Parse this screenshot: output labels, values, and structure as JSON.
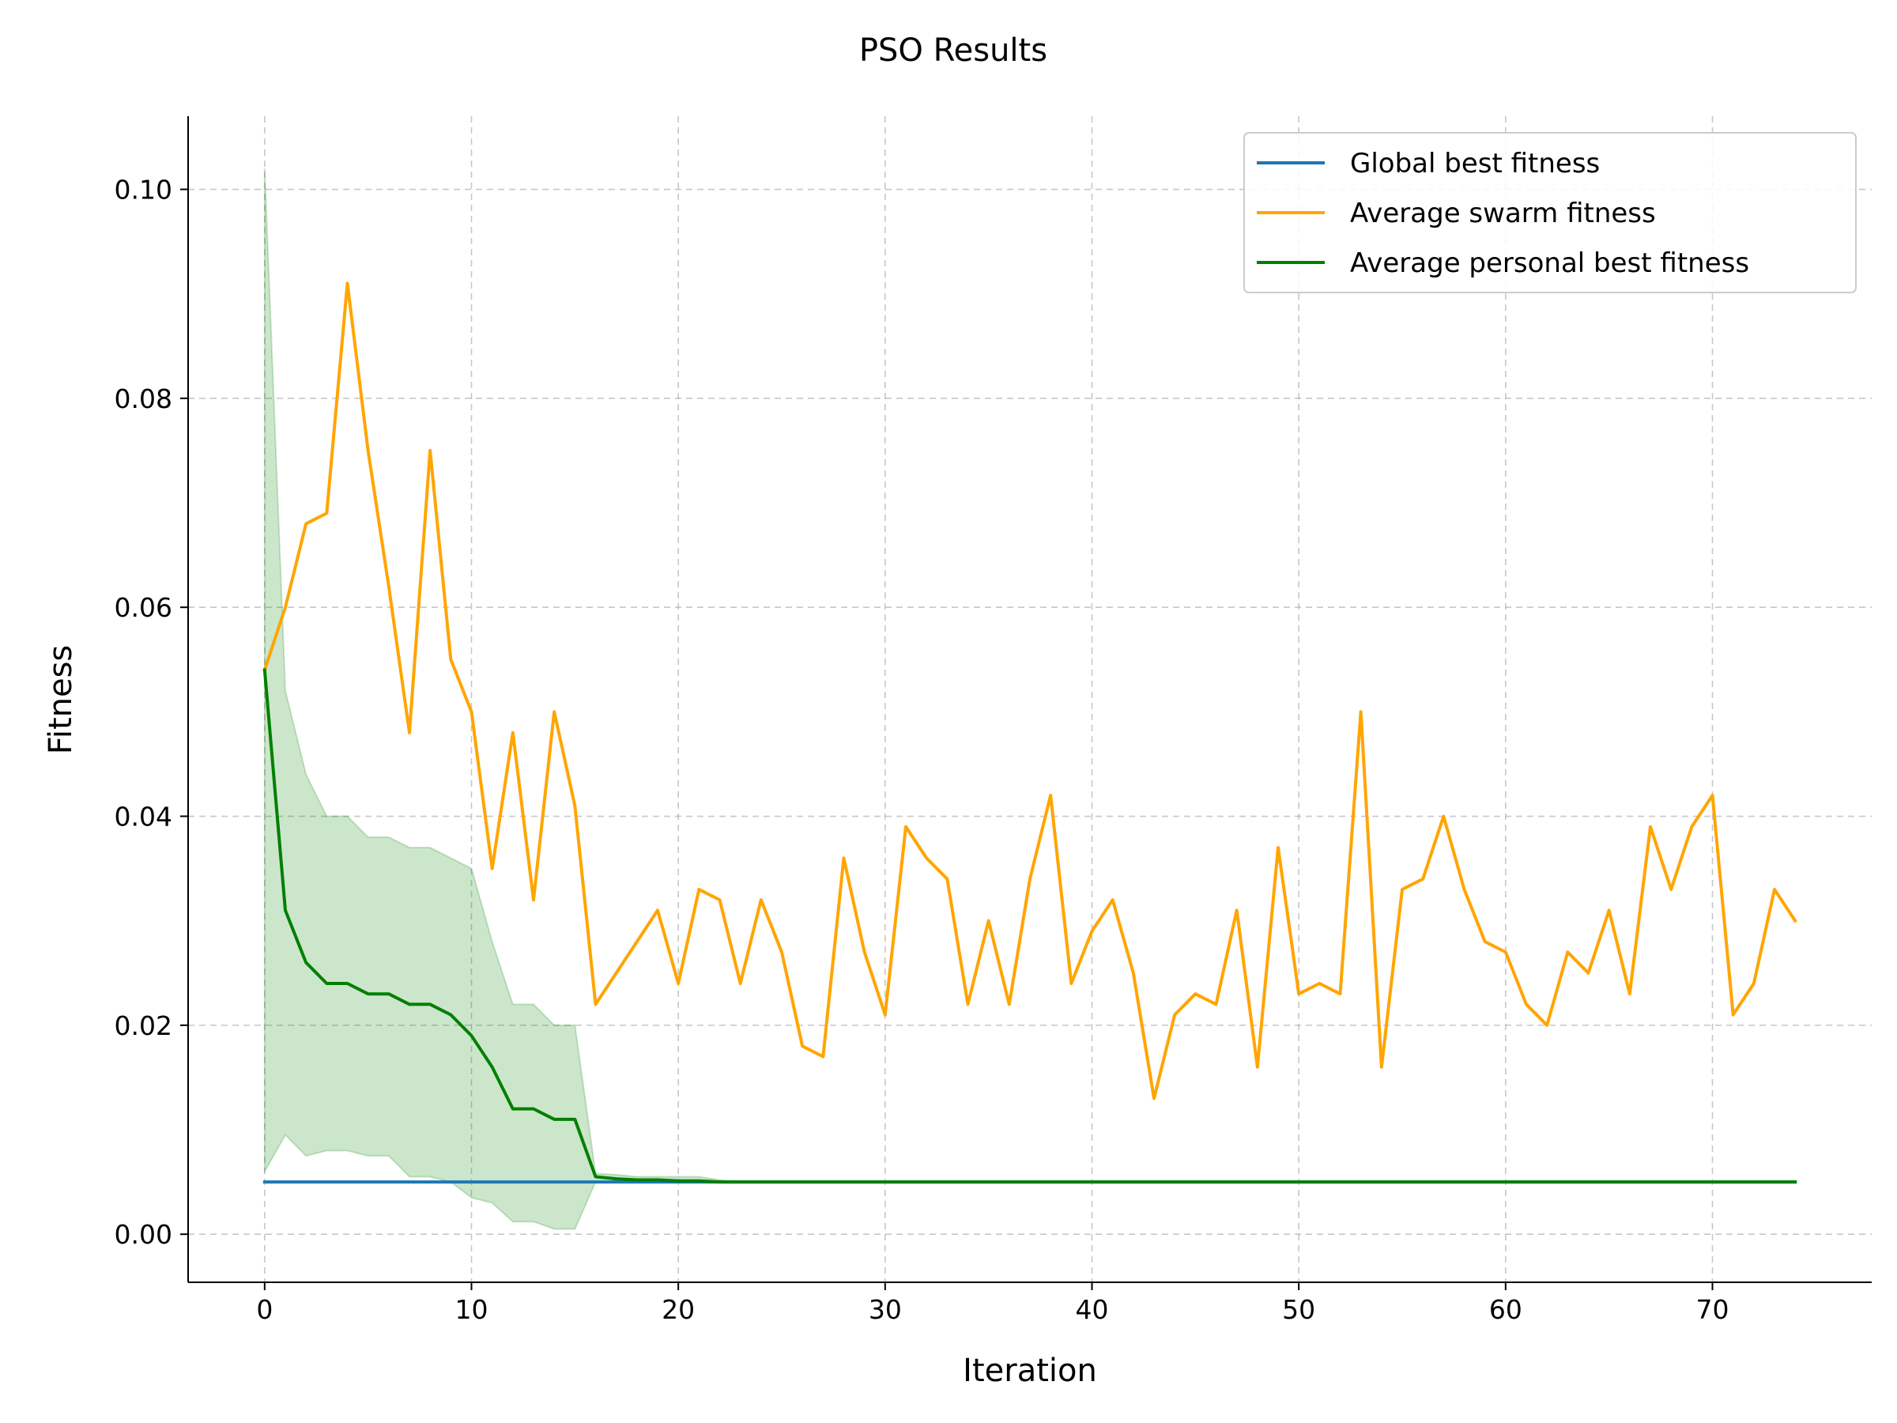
{
  "chart_data": {
    "type": "line",
    "title": "PSO Results",
    "xlabel": "Iteration",
    "ylabel": "Fitness",
    "xlim": [
      -3.7,
      77.7
    ],
    "ylim": [
      -0.0046,
      0.107
    ],
    "xticks": [
      0,
      10,
      20,
      30,
      40,
      50,
      60,
      70
    ],
    "yticks": [
      0.0,
      0.02,
      0.04,
      0.06,
      0.08,
      0.1
    ],
    "ytick_labels": [
      "0.00",
      "0.02",
      "0.04",
      "0.06",
      "0.08",
      "0.10"
    ],
    "grid": true,
    "legend_position": "top-right",
    "x": [
      0,
      1,
      2,
      3,
      4,
      5,
      6,
      7,
      8,
      9,
      10,
      11,
      12,
      13,
      14,
      15,
      16,
      17,
      18,
      19,
      20,
      21,
      22,
      23,
      24,
      25,
      26,
      27,
      28,
      29,
      30,
      31,
      32,
      33,
      34,
      35,
      36,
      37,
      38,
      39,
      40,
      41,
      42,
      43,
      44,
      45,
      46,
      47,
      48,
      49,
      50,
      51,
      52,
      53,
      54,
      55,
      56,
      57,
      58,
      59,
      60,
      61,
      62,
      63,
      64,
      65,
      66,
      67,
      68,
      69,
      70,
      71,
      72,
      73,
      74
    ],
    "series": [
      {
        "name": "Global best fitness",
        "color": "#1f77b4",
        "values": [
          0.005,
          0.005,
          0.005,
          0.005,
          0.005,
          0.005,
          0.005,
          0.005,
          0.005,
          0.005,
          0.005,
          0.005,
          0.005,
          0.005,
          0.005,
          0.005,
          0.005,
          0.005,
          0.005,
          0.005,
          0.005,
          0.005,
          0.005,
          0.005,
          0.005,
          0.005,
          0.005,
          0.005,
          0.005,
          0.005,
          0.005,
          0.005,
          0.005,
          0.005,
          0.005,
          0.005,
          0.005,
          0.005,
          0.005,
          0.005,
          0.005,
          0.005,
          0.005,
          0.005,
          0.005,
          0.005,
          0.005,
          0.005,
          0.005,
          0.005,
          0.005,
          0.005,
          0.005,
          0.005,
          0.005,
          0.005,
          0.005,
          0.005,
          0.005,
          0.005,
          0.005,
          0.005,
          0.005,
          0.005,
          0.005,
          0.005,
          0.005,
          0.005,
          0.005,
          0.005,
          0.005,
          0.005,
          0.005,
          0.005,
          0.005
        ]
      },
      {
        "name": "Average swarm fitness",
        "color": "#ffa500",
        "values": [
          0.054,
          0.06,
          0.068,
          0.069,
          0.091,
          0.075,
          0.062,
          0.048,
          0.075,
          0.055,
          0.05,
          0.035,
          0.048,
          0.032,
          0.05,
          0.041,
          0.022,
          0.025,
          0.028,
          0.031,
          0.024,
          0.033,
          0.032,
          0.024,
          0.032,
          0.027,
          0.018,
          0.017,
          0.036,
          0.027,
          0.021,
          0.039,
          0.036,
          0.034,
          0.022,
          0.03,
          0.022,
          0.034,
          0.042,
          0.024,
          0.029,
          0.032,
          0.025,
          0.013,
          0.021,
          0.023,
          0.022,
          0.031,
          0.016,
          0.037,
          0.023,
          0.024,
          0.023,
          0.05,
          0.016,
          0.033,
          0.034,
          0.04,
          0.033,
          0.028,
          0.027,
          0.022,
          0.02,
          0.027,
          0.025,
          0.031,
          0.023,
          0.039,
          0.033,
          0.039,
          0.042,
          0.021,
          0.024,
          0.033,
          0.03
        ]
      },
      {
        "name": "Average personal best fitness",
        "color": "#008000",
        "values": [
          0.054,
          0.031,
          0.026,
          0.024,
          0.024,
          0.023,
          0.023,
          0.022,
          0.022,
          0.021,
          0.019,
          0.016,
          0.012,
          0.012,
          0.011,
          0.011,
          0.0055,
          0.0053,
          0.0052,
          0.0052,
          0.0051,
          0.0051,
          0.005,
          0.005,
          0.005,
          0.005,
          0.005,
          0.005,
          0.005,
          0.005,
          0.005,
          0.005,
          0.005,
          0.005,
          0.005,
          0.005,
          0.005,
          0.005,
          0.005,
          0.005,
          0.005,
          0.005,
          0.005,
          0.005,
          0.005,
          0.005,
          0.005,
          0.005,
          0.005,
          0.005,
          0.005,
          0.005,
          0.005,
          0.005,
          0.005,
          0.005,
          0.005,
          0.005,
          0.005,
          0.005,
          0.005,
          0.005,
          0.005,
          0.005,
          0.005,
          0.005,
          0.005,
          0.005,
          0.005,
          0.005,
          0.005,
          0.005,
          0.005,
          0.005,
          0.005
        ],
        "band_upper": [
          0.102,
          0.052,
          0.044,
          0.04,
          0.04,
          0.038,
          0.038,
          0.037,
          0.037,
          0.036,
          0.035,
          0.028,
          0.022,
          0.022,
          0.02,
          0.02,
          0.0058,
          0.0057,
          0.0055,
          0.0055,
          0.0055,
          0.0055,
          0.0052,
          0.005,
          0.005,
          0.005,
          0.005,
          0.005,
          0.005,
          0.005,
          0.005,
          0.005,
          0.005,
          0.005,
          0.005,
          0.005,
          0.005,
          0.005,
          0.005,
          0.005,
          0.005,
          0.005,
          0.005,
          0.005,
          0.005,
          0.005,
          0.005,
          0.005,
          0.005,
          0.005,
          0.005,
          0.005,
          0.005,
          0.005,
          0.005,
          0.005,
          0.005,
          0.005,
          0.005,
          0.005,
          0.005,
          0.005,
          0.005,
          0.005,
          0.005,
          0.005,
          0.005,
          0.005,
          0.005,
          0.005,
          0.005,
          0.005,
          0.005,
          0.005,
          0.005
        ],
        "band_lower": [
          0.006,
          0.0095,
          0.0075,
          0.008,
          0.008,
          0.0075,
          0.0075,
          0.0055,
          0.0055,
          0.005,
          0.0035,
          0.003,
          0.0012,
          0.0012,
          0.0005,
          0.0005,
          0.005,
          0.005,
          0.005,
          0.005,
          0.005,
          0.005,
          0.005,
          0.005,
          0.005,
          0.005,
          0.005,
          0.005,
          0.005,
          0.005,
          0.005,
          0.005,
          0.005,
          0.005,
          0.005,
          0.005,
          0.005,
          0.005,
          0.005,
          0.005,
          0.005,
          0.005,
          0.005,
          0.005,
          0.005,
          0.005,
          0.005,
          0.005,
          0.005,
          0.005,
          0.005,
          0.005,
          0.005,
          0.005,
          0.005,
          0.005,
          0.005,
          0.005,
          0.005,
          0.005,
          0.005,
          0.005,
          0.005,
          0.005,
          0.005,
          0.005,
          0.005,
          0.005,
          0.005,
          0.005,
          0.005,
          0.005,
          0.005,
          0.005,
          0.005
        ]
      }
    ]
  }
}
